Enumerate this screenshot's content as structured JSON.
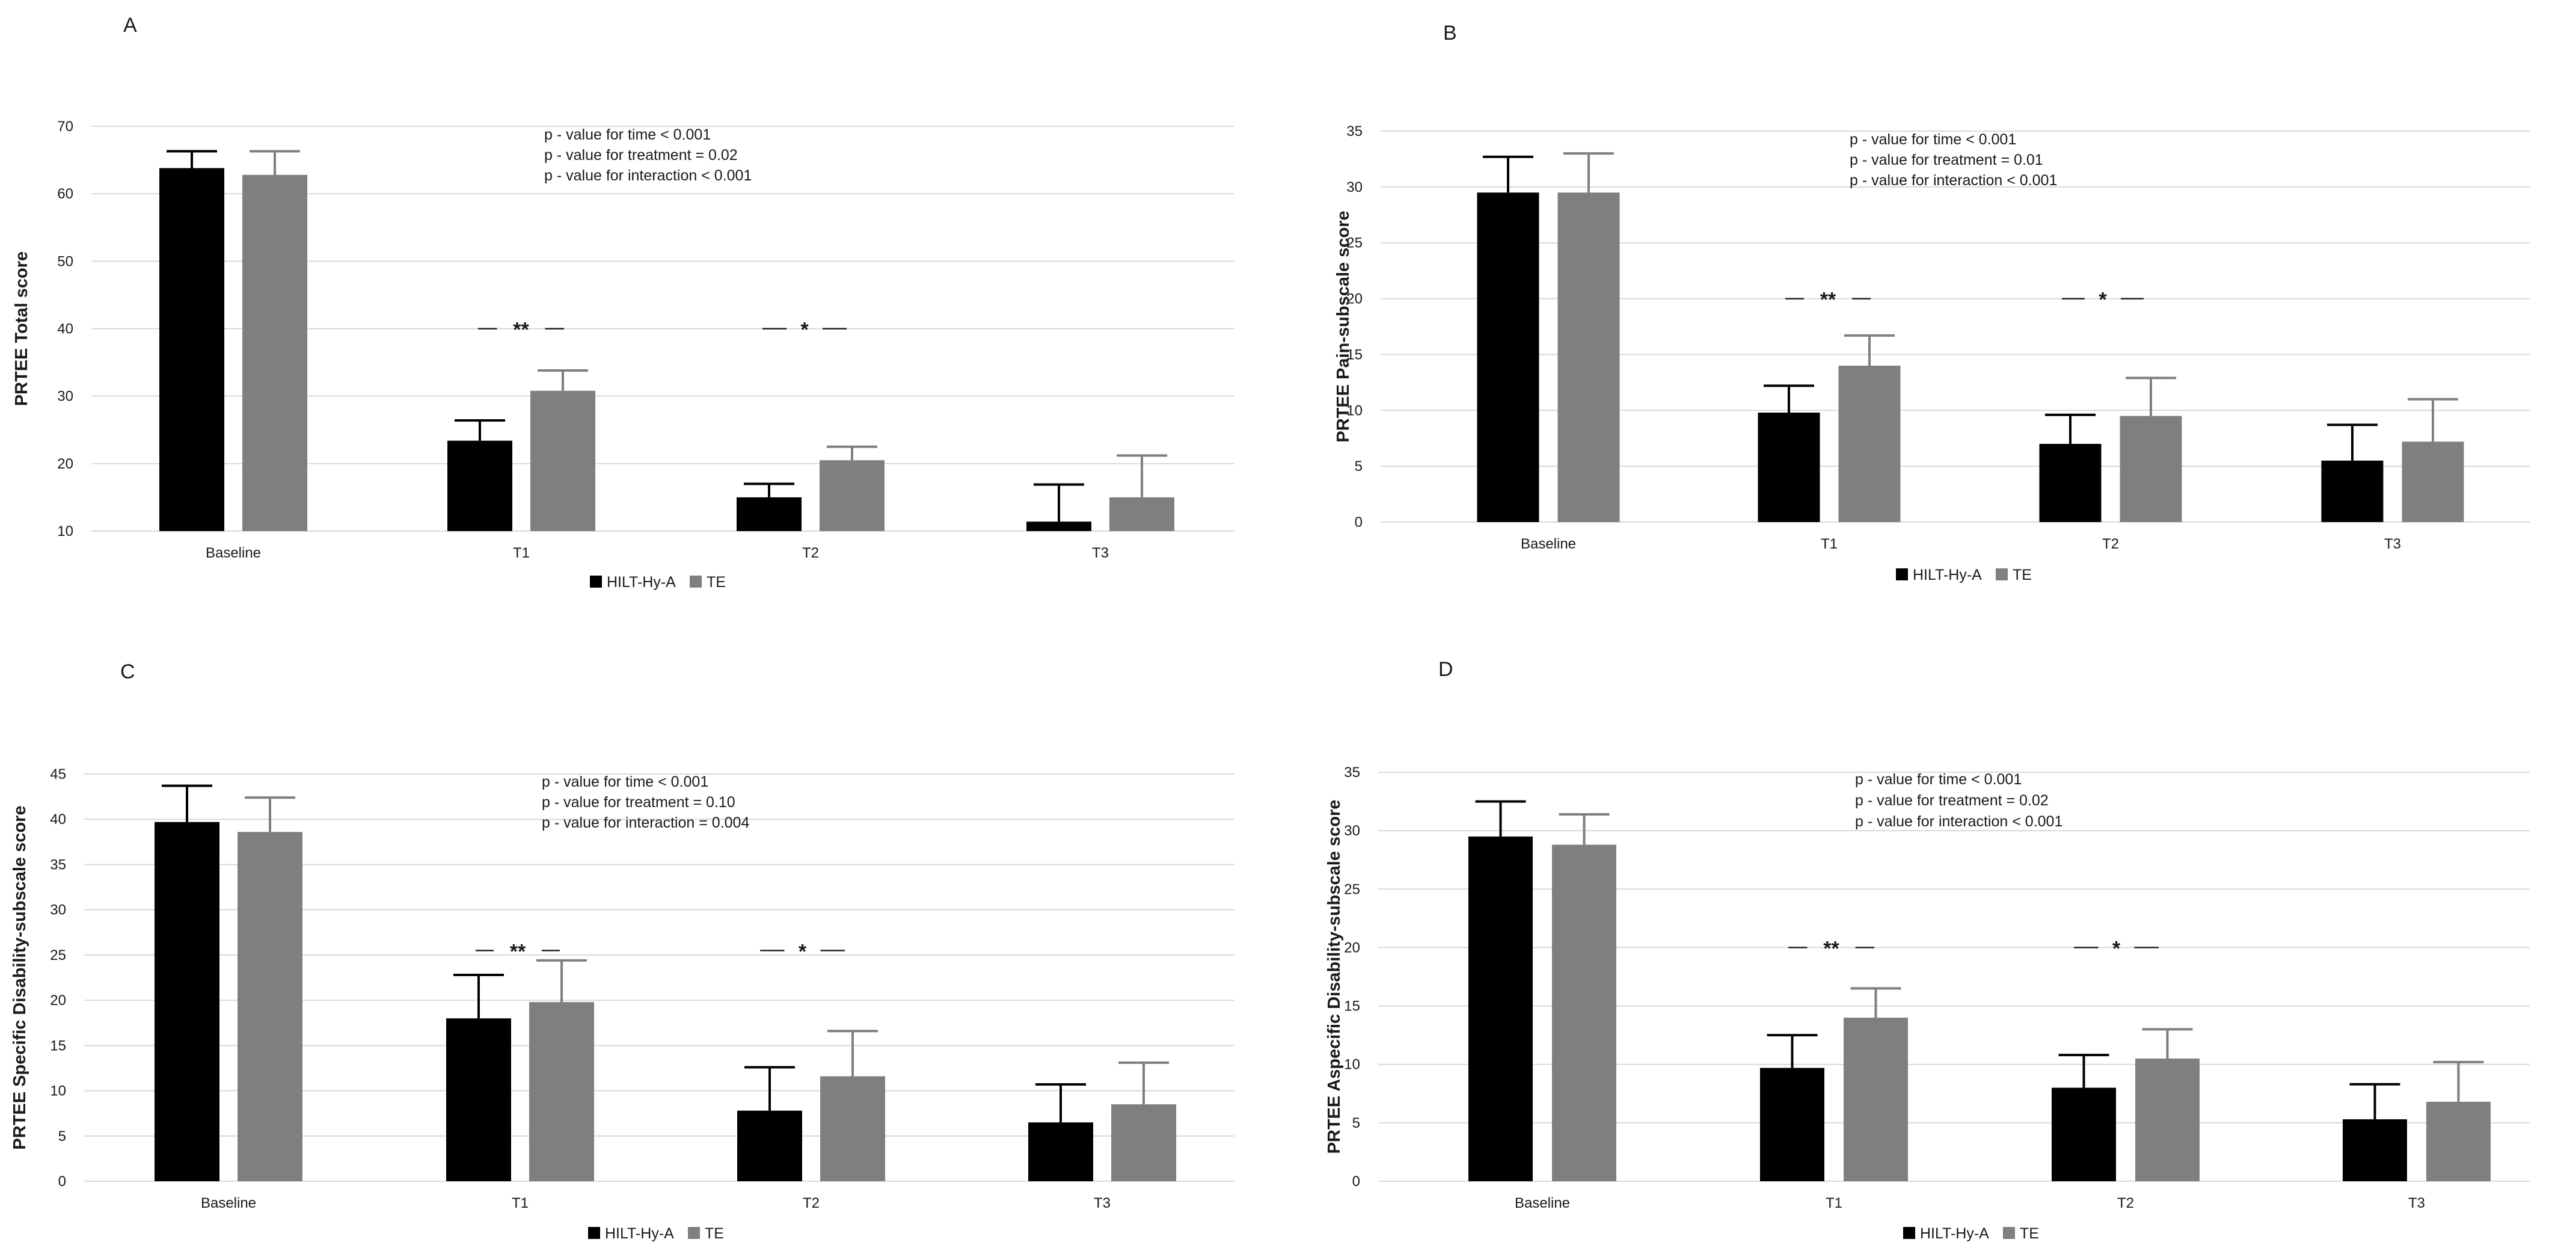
{
  "figure": {
    "legend": {
      "series1": "HILT-Hy-A",
      "series2": "TE"
    },
    "colors": {
      "HILT-Hy-A": "#000000",
      "TE": "#7f7f7f",
      "grid": "#d9d9d9"
    }
  },
  "chart_data": [
    {
      "panel": "A",
      "type": "bar",
      "ylabel": "PRTEE Total score",
      "ylim": [
        10,
        70
      ],
      "yticks": [
        10,
        20,
        30,
        40,
        50,
        60,
        70
      ],
      "categories": [
        "Baseline",
        "T1",
        "T2",
        "T3"
      ],
      "series": [
        {
          "name": "HILT-Hy-A",
          "values": [
            63.8,
            23.4,
            15.0,
            11.4
          ],
          "errors": [
            2.5,
            3.0,
            2.0,
            5.5
          ]
        },
        {
          "name": "TE",
          "values": [
            62.8,
            30.8,
            20.5,
            15.0
          ],
          "errors": [
            3.5,
            3.0,
            2.0,
            6.2
          ]
        }
      ],
      "stats": [
        "p - value for time < 0.001",
        "p - value for treatment = 0.02",
        "p - value for interaction < 0.001"
      ],
      "significance": [
        {
          "category": "T1",
          "mark": "**",
          "level": 40
        },
        {
          "category": "T2",
          "mark": "*",
          "level": 40
        }
      ]
    },
    {
      "panel": "B",
      "type": "bar",
      "ylabel": "PRTEE Pain-subscale score",
      "ylim": [
        0,
        35
      ],
      "yticks": [
        0,
        5,
        10,
        15,
        20,
        25,
        30,
        35
      ],
      "categories": [
        "Baseline",
        "T1",
        "T2",
        "T3"
      ],
      "series": [
        {
          "name": "HILT-Hy-A",
          "values": [
            29.5,
            9.8,
            7.0,
            5.5
          ],
          "errors": [
            3.2,
            2.4,
            2.6,
            3.2
          ]
        },
        {
          "name": "TE",
          "values": [
            29.5,
            14.0,
            9.5,
            7.2
          ],
          "errors": [
            3.5,
            2.7,
            3.4,
            3.8
          ]
        }
      ],
      "stats": [
        "p - value for time < 0.001",
        "p - value for treatment = 0.01",
        "p - value for interaction < 0.001"
      ],
      "significance": [
        {
          "category": "T1",
          "mark": "**",
          "level": 20
        },
        {
          "category": "T2",
          "mark": "*",
          "level": 20
        }
      ]
    },
    {
      "panel": "C",
      "type": "bar",
      "ylabel": "PRTEE Specific Disability-subscale score",
      "ylim": [
        0,
        45
      ],
      "yticks": [
        0,
        5,
        10,
        15,
        20,
        25,
        30,
        35,
        40,
        45
      ],
      "categories": [
        "Baseline",
        "T1",
        "T2",
        "T3"
      ],
      "series": [
        {
          "name": "HILT-Hy-A",
          "values": [
            39.7,
            18.0,
            7.8,
            6.5
          ],
          "errors": [
            4.0,
            4.8,
            4.8,
            4.2
          ]
        },
        {
          "name": "TE",
          "values": [
            38.6,
            19.8,
            11.6,
            8.5
          ],
          "errors": [
            3.8,
            4.6,
            5.0,
            4.6
          ]
        }
      ],
      "stats": [
        "p - value for time < 0.001",
        "p - value for treatment = 0.10",
        "p - value for interaction = 0.004"
      ],
      "significance": [
        {
          "category": "T1",
          "mark": "**",
          "level": 25.5
        },
        {
          "category": "T2",
          "mark": "*",
          "level": 25.5
        }
      ]
    },
    {
      "panel": "D",
      "type": "bar",
      "ylabel": "PRTEE Aspecific Disability-subscale score",
      "ylim": [
        0,
        35
      ],
      "yticks": [
        0,
        5,
        10,
        15,
        20,
        25,
        30,
        35
      ],
      "categories": [
        "Baseline",
        "T1",
        "T2",
        "T3"
      ],
      "series": [
        {
          "name": "HILT-Hy-A",
          "values": [
            29.5,
            9.7,
            8.0,
            5.3
          ],
          "errors": [
            3.0,
            2.8,
            2.8,
            3.0
          ]
        },
        {
          "name": "TE",
          "values": [
            28.8,
            14.0,
            10.5,
            6.8
          ],
          "errors": [
            2.6,
            2.5,
            2.5,
            3.4
          ]
        }
      ],
      "stats": [
        "p - value for time < 0.001",
        "p - value for treatment = 0.02",
        "p - value for interaction < 0.001"
      ],
      "significance": [
        {
          "category": "T1",
          "mark": "**",
          "level": 20
        },
        {
          "category": "T2",
          "mark": "*",
          "level": 20
        }
      ]
    }
  ]
}
